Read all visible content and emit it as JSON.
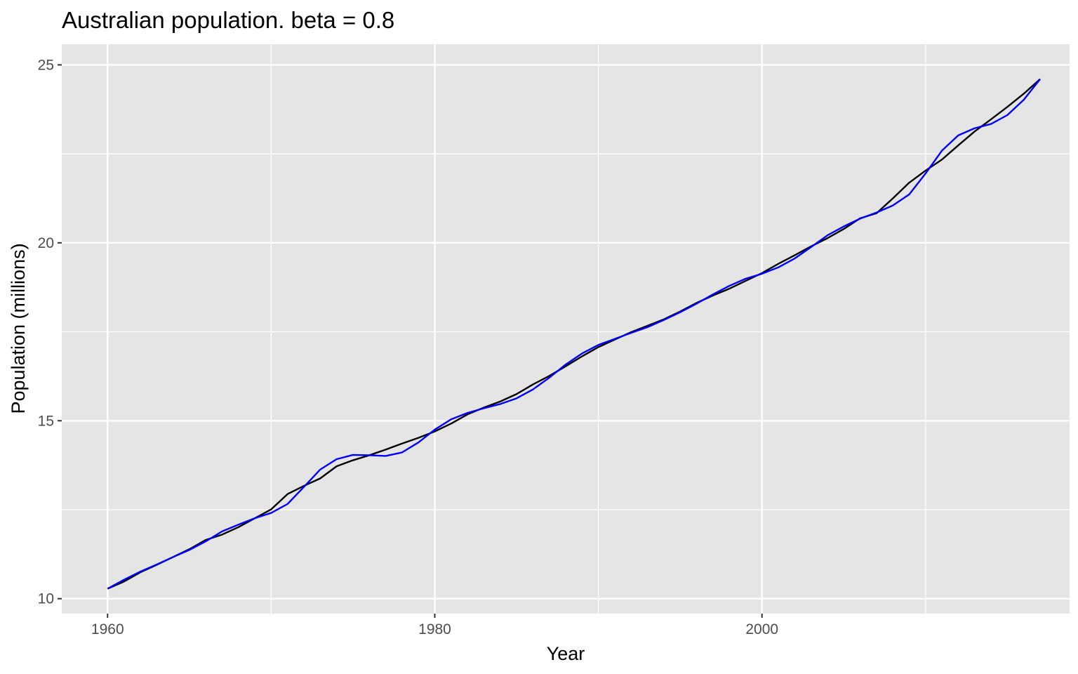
{
  "chart_data": {
    "type": "line",
    "title": "Australian population. beta = 0.8",
    "xlabel": "Year",
    "ylabel": "Population (millions)",
    "xlim": [
      1957.2,
      2018.8
    ],
    "ylim": [
      9.58,
      25.58
    ],
    "x_ticks": [
      1960,
      1980,
      2000
    ],
    "x_tick_labels": [
      "1960",
      "1980",
      "2000"
    ],
    "x_minor_ticks": [
      1970,
      1990,
      2010
    ],
    "y_ticks": [
      10,
      15,
      20,
      25
    ],
    "y_tick_labels": [
      "10",
      "15",
      "20",
      "25"
    ],
    "y_minor_ticks": [
      12.5,
      17.5,
      22.5
    ],
    "grid": true,
    "legend": "none",
    "x": [
      1960,
      1961,
      1962,
      1963,
      1964,
      1965,
      1966,
      1967,
      1968,
      1969,
      1970,
      1971,
      1972,
      1973,
      1974,
      1975,
      1976,
      1977,
      1978,
      1979,
      1980,
      1981,
      1982,
      1983,
      1984,
      1985,
      1986,
      1987,
      1988,
      1989,
      1990,
      1991,
      1992,
      1993,
      1994,
      1995,
      1996,
      1997,
      1998,
      1999,
      2000,
      2001,
      2002,
      2003,
      2004,
      2005,
      2006,
      2007,
      2008,
      2009,
      2010,
      2011,
      2012,
      2013,
      2014,
      2015,
      2016,
      2017
    ],
    "series": [
      {
        "color": "#000000",
        "values": [
          10.28,
          10.48,
          10.74,
          10.95,
          11.17,
          11.39,
          11.65,
          11.8,
          12.01,
          12.26,
          12.51,
          12.94,
          13.17,
          13.38,
          13.72,
          13.89,
          14.03,
          14.19,
          14.36,
          14.52,
          14.7,
          14.92,
          15.18,
          15.37,
          15.54,
          15.75,
          16.02,
          16.26,
          16.53,
          16.81,
          17.07,
          17.28,
          17.49,
          17.67,
          17.85,
          18.07,
          18.31,
          18.52,
          18.71,
          18.93,
          19.15,
          19.41,
          19.65,
          19.9,
          20.13,
          20.39,
          20.69,
          20.83,
          21.25,
          21.69,
          22.03,
          22.34,
          22.74,
          23.13,
          23.47,
          23.82,
          24.19,
          24.6
        ]
      },
      {
        "color": "#0000ff",
        "values": [
          10.28,
          10.53,
          10.76,
          10.96,
          11.17,
          11.37,
          11.61,
          11.89,
          12.08,
          12.26,
          12.41,
          12.66,
          13.14,
          13.63,
          13.92,
          14.04,
          14.03,
          14.01,
          14.11,
          14.39,
          14.75,
          15.04,
          15.22,
          15.35,
          15.47,
          15.63,
          15.88,
          16.21,
          16.58,
          16.89,
          17.13,
          17.3,
          17.47,
          17.63,
          17.83,
          18.05,
          18.29,
          18.55,
          18.79,
          18.99,
          19.13,
          19.31,
          19.56,
          19.88,
          20.21,
          20.46,
          20.68,
          20.85,
          21.05,
          21.36,
          21.95,
          22.59,
          23.02,
          23.22,
          23.34,
          23.59,
          24.02,
          24.6
        ]
      }
    ]
  }
}
